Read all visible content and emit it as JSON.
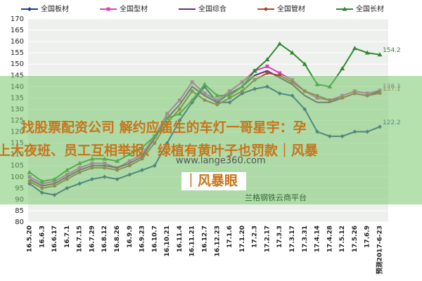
{
  "chart_data": {
    "type": "line",
    "categories": [
      "16.5.20",
      "16.6.3",
      "16.6.17",
      "16.7.1",
      "16.7.15",
      "16.7.29",
      "16.8.12",
      "16.8.26",
      "16.9.9",
      "16.9.23",
      "16.10.7",
      "16.10.21",
      "16.11.4",
      "16.11.21",
      "16.12.7",
      "16.12.23",
      "17.1.6",
      "17.1.20",
      "17.2.3",
      "17.2.17",
      "17.3.3",
      "17.3.17",
      "17.3.31",
      "17.4.14",
      "17.4.28",
      "17.5.12",
      "17.5.26",
      "17.6.9",
      "预测2017-6-23"
    ],
    "series": [
      {
        "name": "全国板材",
        "color": "#1f3a93",
        "marker": "diamond",
        "show_last": true,
        "values": [
          97,
          93,
          92,
          95,
          97,
          99,
          100,
          99,
          101,
          103,
          105,
          115,
          125,
          133,
          140,
          133,
          133,
          137,
          139,
          140,
          137,
          136,
          130,
          120,
          118,
          118,
          120,
          120,
          122.2
        ]
      },
      {
        "name": "全国型材",
        "color": "#e040c0",
        "marker": "square",
        "show_last": true,
        "values": [
          100,
          97,
          98,
          101,
          104,
          106,
          106,
          104,
          107,
          110,
          118,
          128,
          134,
          142,
          137,
          134,
          138,
          142,
          147,
          149,
          146,
          143,
          138,
          135,
          134,
          136,
          138,
          137,
          138.3
        ]
      },
      {
        "name": "全国综合",
        "color": "#6a2a7a",
        "marker": "none",
        "show_last": false,
        "values": [
          99,
          96,
          97,
          100,
          103,
          105,
          105,
          104,
          106,
          109,
          117,
          126,
          132,
          140,
          136,
          133,
          137,
          140,
          145,
          147,
          144,
          141,
          136,
          133,
          133,
          135,
          137,
          136,
          138
        ]
      },
      {
        "name": "全国管材",
        "color": "#a0522d",
        "marker": "circle",
        "show_last": true,
        "values": [
          98,
          95,
          96,
          99,
          102,
          104,
          104,
          103,
          105,
          108,
          115,
          124,
          130,
          138,
          134,
          132,
          135,
          138,
          143,
          146,
          145,
          142,
          138,
          136,
          134,
          135,
          137,
          136,
          137.1
        ]
      },
      {
        "name": "全国长材",
        "color": "#2e8b2e",
        "marker": "triangle",
        "show_last": true,
        "values": [
          102,
          98,
          99,
          103,
          106,
          108,
          108,
          107,
          110,
          113,
          118,
          126,
          128,
          134,
          141,
          136,
          136,
          140,
          147,
          152,
          159,
          155,
          150,
          141,
          140,
          148,
          157,
          155,
          154.2
        ]
      }
    ],
    "ylim": [
      80,
      170
    ],
    "yticks": [
      80,
      85,
      90,
      95,
      100,
      105,
      110,
      115,
      120,
      125,
      130,
      135,
      140,
      145,
      150,
      155,
      160,
      165,
      170
    ],
    "grid": true
  },
  "overlay": {
    "lines": [
      "找股票配资公司 解约应届生的车灯一哥星宇：孕",
      "上大夜班、员工互相举报、绿植有黄叶子也罚款｜风暴",
      "｜风暴眼"
    ],
    "watermark": "www.lange360.com",
    "source": "兰格钢铁云商平台"
  }
}
